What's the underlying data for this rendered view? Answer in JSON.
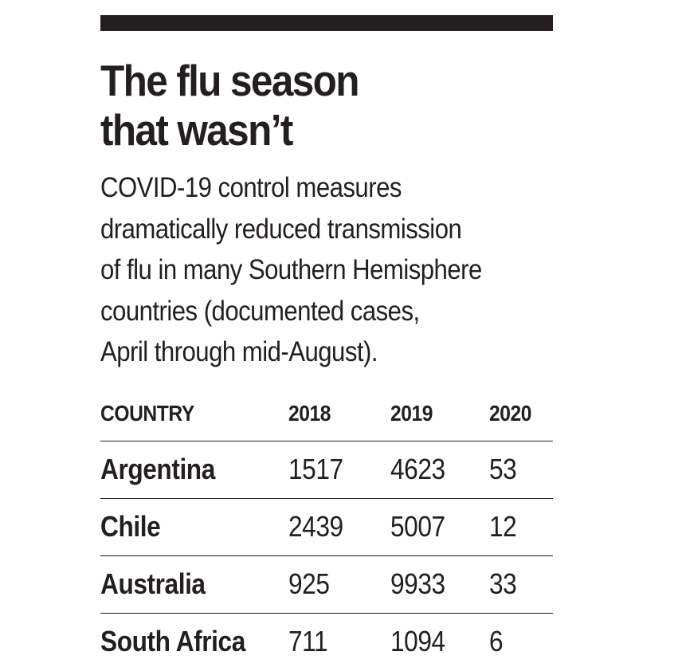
{
  "graphic": {
    "title_lines": [
      "The flu season",
      "that wasn’t"
    ],
    "subtitle_lines": [
      "COVID-19 control measures",
      "dramatically reduced transmission",
      "of flu in many Southern Hemisphere",
      "countries (documented cases,",
      "April through mid-August)."
    ]
  },
  "chart_data": {
    "type": "table",
    "title": "The flu season that wasn’t",
    "subtitle": "COVID-19 control measures dramatically reduced transmission of flu in many Southern Hemisphere countries (documented cases, April through mid-August).",
    "columns": [
      "COUNTRY",
      "2018",
      "2019",
      "2020"
    ],
    "rows": [
      [
        "Argentina",
        "1517",
        "4623",
        "53"
      ],
      [
        "Chile",
        "2439",
        "5007",
        "12"
      ],
      [
        "Australia",
        "925",
        "9933",
        "33"
      ],
      [
        "South Africa",
        "711",
        "1094",
        "6"
      ]
    ]
  }
}
